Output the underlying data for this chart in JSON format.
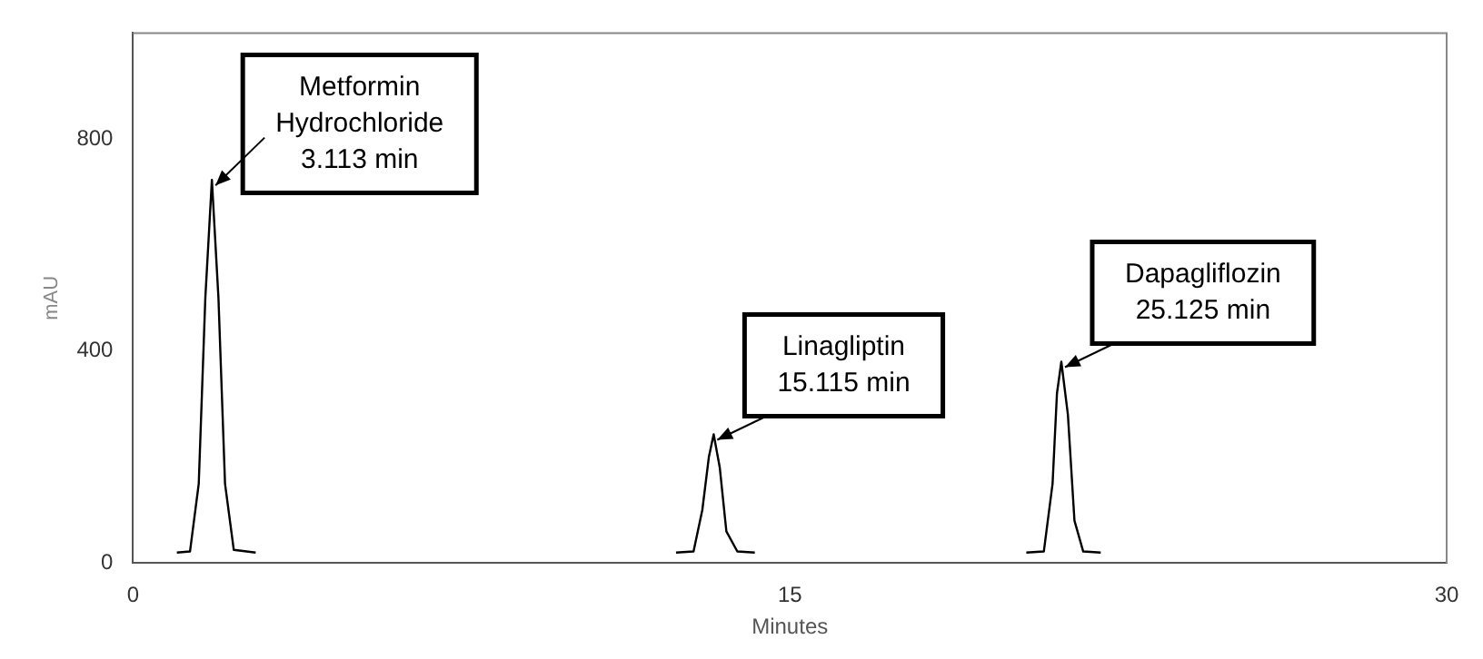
{
  "chart_data": {
    "type": "line",
    "xlabel": "Minutes",
    "ylabel": "mAU",
    "xlim": [
      0,
      30
    ],
    "xticks": [
      0,
      15,
      30
    ],
    "ylim": [
      0,
      1000
    ],
    "yticks": [
      0,
      400,
      800
    ],
    "grid": false,
    "legend": false,
    "marker": "none",
    "line_style": "solid",
    "series": [
      {
        "color": "#000000",
        "x": [
          1.0,
          1.3,
          1.5,
          1.65,
          1.8,
          1.95,
          2.1,
          2.3,
          2.8,
          null,
          12.4,
          12.8,
          13.0,
          13.15,
          13.26,
          13.4,
          13.55,
          13.8,
          14.2,
          null,
          20.4,
          20.8,
          21.0,
          21.1,
          21.2,
          21.35,
          21.5,
          21.7,
          22.1
        ],
        "values": [
          20,
          22,
          150,
          500,
          723,
          500,
          150,
          25,
          20,
          null,
          20,
          22,
          100,
          200,
          243,
          180,
          60,
          22,
          20,
          null,
          20,
          22,
          150,
          320,
          380,
          280,
          80,
          22,
          20
        ]
      }
    ],
    "annotations": [
      {
        "text": "Metformin\nHydrochloride\n3.113 min",
        "x": 1.8,
        "y": 723
      },
      {
        "text": "Linagliptin\n15.115 min",
        "x": 13.26,
        "y": 243
      },
      {
        "text": "Dapagliflozin\n25.125 min",
        "x": 21.2,
        "y": 380
      }
    ]
  }
}
